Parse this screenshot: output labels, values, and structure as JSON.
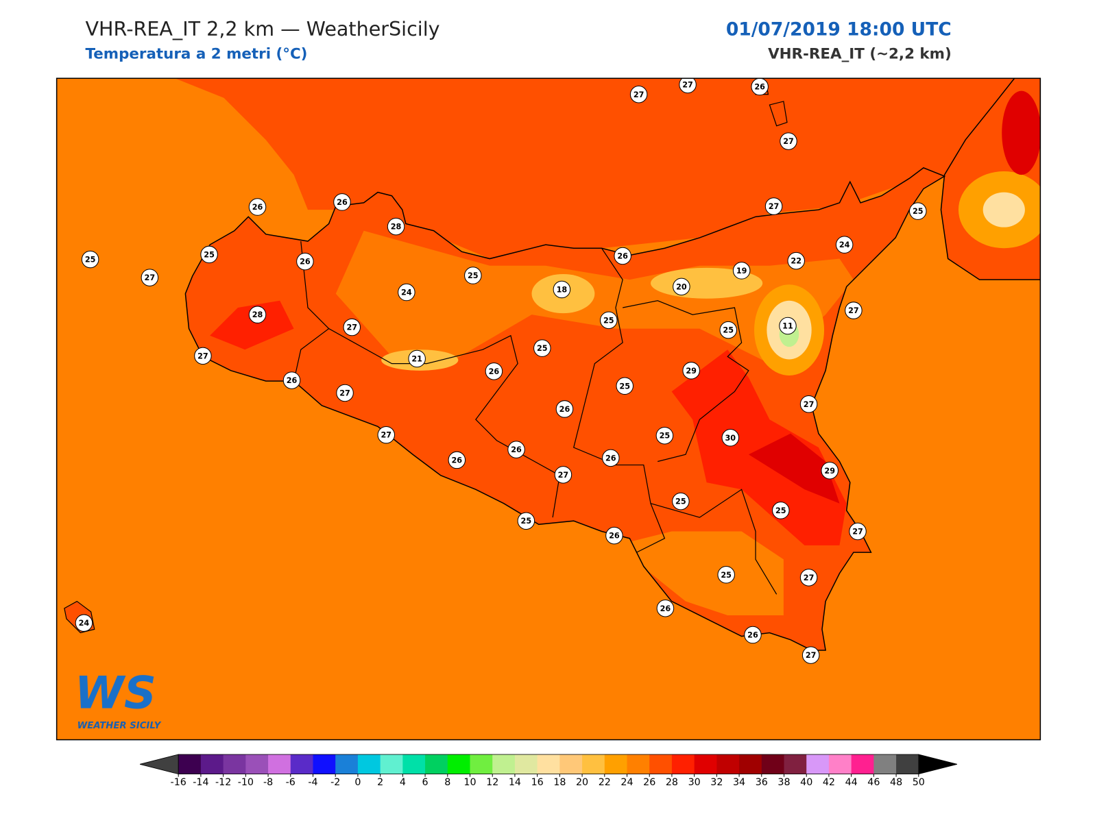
{
  "header": {
    "title": "VHR-REA_IT 2,2 km — WeatherSicily",
    "subtitle": "Temperatura a 2 metri (°C)",
    "datetime": "01/07/2019 18:00 UTC",
    "model": "VHR-REA_IT (~2,2 km)"
  },
  "stations": [
    27,
    27,
    26,
    27,
    26,
    26,
    28,
    27,
    25,
    25,
    25,
    26,
    27,
    26,
    24,
    19,
    22,
    25,
    24,
    18,
    20,
    27,
    28,
    25,
    11,
    25,
    27,
    25,
    21,
    27,
    26,
    29,
    26,
    27,
    25,
    27,
    26,
    27,
    25,
    30,
    26,
    26,
    26,
    29,
    27,
    25,
    25,
    25,
    26,
    27,
    25,
    27,
    26,
    26,
    27,
    24
  ],
  "colorbar": {
    "ticks": [
      -16,
      -14,
      -12,
      -10,
      -8,
      -6,
      -4,
      -2,
      0,
      2,
      4,
      6,
      8,
      10,
      12,
      14,
      16,
      18,
      20,
      22,
      24,
      26,
      28,
      30,
      32,
      34,
      36,
      38,
      40,
      42,
      44,
      46,
      48,
      50
    ],
    "colors": [
      "#3d0050",
      "#5c1a8a",
      "#7a35a0",
      "#9a50b8",
      "#d070e0",
      "#5a2bc8",
      "#1010ff",
      "#1a80d8",
      "#00c8e0",
      "#60f0d0",
      "#00e0a8",
      "#00d060",
      "#00ee00",
      "#70ee40",
      "#c0f090",
      "#e0e8a0",
      "#ffe0a0",
      "#ffc878",
      "#ffc040",
      "#ffa000",
      "#ff8000",
      "#ff5000",
      "#ff2000",
      "#e00000",
      "#c00000",
      "#a00000",
      "#700018",
      "#802040",
      "#d898f8",
      "#ff80c8",
      "#ff2090",
      "#808080",
      "#404040"
    ],
    "under_color": "#404040",
    "over_color": "#000000"
  },
  "logo": {
    "mark": "WS",
    "text": "WEATHER SICILY"
  }
}
